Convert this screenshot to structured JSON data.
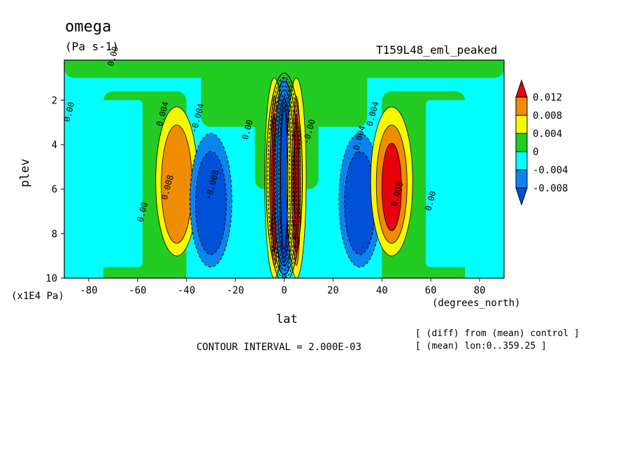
{
  "chart_data": {
    "type": "heatmap",
    "title": "omega",
    "units": "(Pa s-1)",
    "experiment": "T159L48_eml_peaked",
    "xlabel": "lat",
    "xlabel_units": "(degrees_north)",
    "ylabel": "plev",
    "ylabel_units": "(x1E4 Pa)",
    "xlim": [
      -90,
      90
    ],
    "ylim": [
      10,
      0.2
    ],
    "x_ticks": [
      "-80",
      "-60",
      "-40",
      "-20",
      "0",
      "20",
      "40",
      "60",
      "80"
    ],
    "y_ticks": [
      "2",
      "4",
      "6",
      "8",
      "10"
    ],
    "contour_interval": "CONTOUR INTERVAL = 2.000E-03",
    "notes": [
      "[ (diff) from (mean) control ]",
      "[ (mean) lon:0..359.25 ]"
    ],
    "colorbar": {
      "levels": [
        "0.012",
        "0.008",
        "0.004",
        "0",
        "-0.004",
        "-0.008"
      ],
      "colors": [
        "#e8000b",
        "#f08c00",
        "#f7f700",
        "#22cc22",
        "#00ffff",
        "#0a85f0",
        "#0050d8"
      ]
    },
    "contour_labels": [
      "0.00",
      "0.00",
      "0.004",
      "-0.004",
      "0.008",
      "-0.008",
      "0.00",
      "0.008",
      "0.004",
      "-0.004",
      "0.00",
      "0.00",
      "-0.00"
    ],
    "features": [
      {
        "lat": -44,
        "plev_range": [
          2.3,
          9.0
        ],
        "peak": 0.008
      },
      {
        "lat": -30,
        "plev_range": [
          3.5,
          9.5
        ],
        "peak": -0.008
      },
      {
        "lat": -4,
        "plev_range": [
          1.0,
          10.0
        ],
        "peak": 0.012
      },
      {
        "lat": 0,
        "plev_range": [
          1.0,
          10.0
        ],
        "peak": -0.008
      },
      {
        "lat": 5,
        "plev_range": [
          1.0,
          10.0
        ],
        "peak": 0.012
      },
      {
        "lat": 31,
        "plev_range": [
          3.5,
          9.5
        ],
        "peak": -0.008
      },
      {
        "lat": 44,
        "plev_range": [
          2.3,
          9.0
        ],
        "peak": 0.012
      }
    ]
  }
}
